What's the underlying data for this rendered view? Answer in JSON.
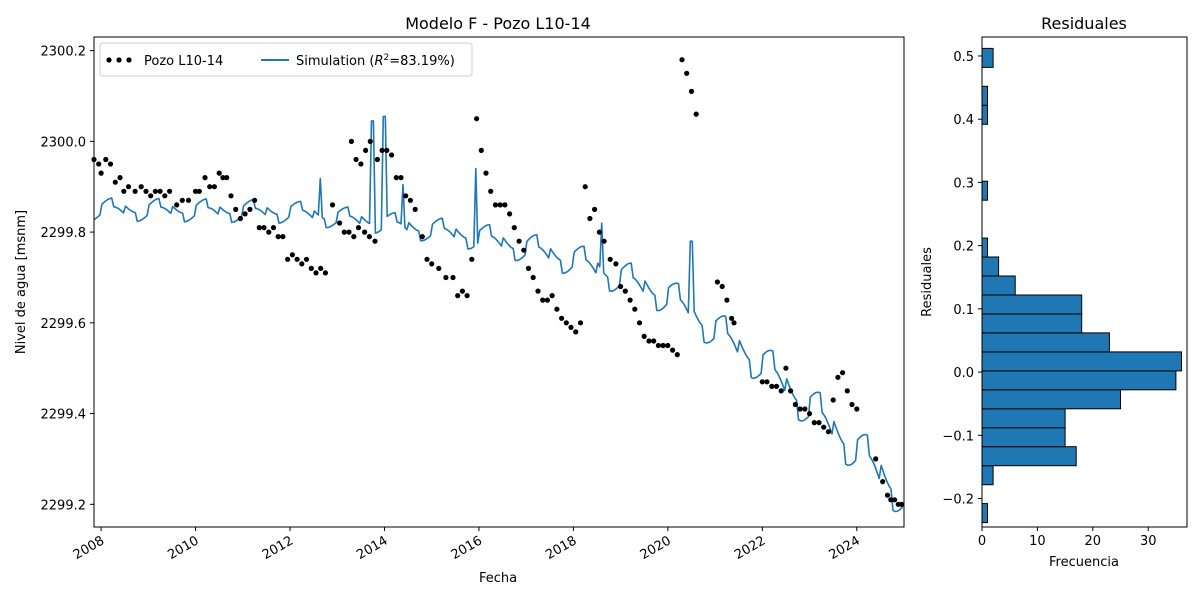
{
  "chart_data": [
    {
      "type": "line",
      "title": "Modelo F - Pozo L10-14",
      "xlabel": "Fecha",
      "ylabel": "Nivel de agua [msnm]",
      "xlim": [
        2007.85,
        2025.0
      ],
      "ylim": [
        2299.15,
        2300.23
      ],
      "x_tick_labels": [
        "2008",
        "2010",
        "2012",
        "2014",
        "2016",
        "2018",
        "2020",
        "2022",
        "2024"
      ],
      "x_tick_values": [
        2008,
        2010,
        2012,
        2014,
        2016,
        2018,
        2020,
        2022,
        2024
      ],
      "y_tick_labels": [
        "2299.2",
        "2299.4",
        "2299.6",
        "2299.8",
        "2300.0",
        "2300.2"
      ],
      "y_tick_values": [
        2299.2,
        2299.4,
        2299.6,
        2299.8,
        2300.0,
        2300.2
      ],
      "legend": {
        "placement": "upper-left",
        "ncol": 2,
        "entries": [
          "Pozo L10-14",
          "Simulation ($R^2$=83.19%)"
        ]
      },
      "legend_text": {
        "observed": "Pozo L10-14",
        "sim_prefix": "Simulation (",
        "sim_R": "R",
        "sim_sup": "2",
        "sim_suffix": "=83.19%)"
      },
      "grid": false,
      "series": [
        {
          "name": "Pozo L10-14",
          "style": "scatter",
          "color": "#000000",
          "points": [
            [
              2007.85,
              2299.96
            ],
            [
              2007.95,
              2299.95
            ],
            [
              2008.0,
              2299.93
            ],
            [
              2008.1,
              2299.96
            ],
            [
              2008.2,
              2299.95
            ],
            [
              2008.3,
              2299.91
            ],
            [
              2008.4,
              2299.92
            ],
            [
              2008.48,
              2299.89
            ],
            [
              2008.58,
              2299.9
            ],
            [
              2008.72,
              2299.89
            ],
            [
              2008.85,
              2299.9
            ],
            [
              2008.95,
              2299.89
            ],
            [
              2009.05,
              2299.88
            ],
            [
              2009.15,
              2299.89
            ],
            [
              2009.25,
              2299.89
            ],
            [
              2009.35,
              2299.88
            ],
            [
              2009.45,
              2299.89
            ],
            [
              2009.6,
              2299.86
            ],
            [
              2009.72,
              2299.87
            ],
            [
              2009.85,
              2299.87
            ],
            [
              2010.0,
              2299.89
            ],
            [
              2010.08,
              2299.89
            ],
            [
              2010.2,
              2299.92
            ],
            [
              2010.3,
              2299.9
            ],
            [
              2010.4,
              2299.9
            ],
            [
              2010.5,
              2299.93
            ],
            [
              2010.58,
              2299.92
            ],
            [
              2010.66,
              2299.92
            ],
            [
              2010.75,
              2299.88
            ],
            [
              2010.85,
              2299.85
            ],
            [
              2010.95,
              2299.83
            ],
            [
              2011.05,
              2299.84
            ],
            [
              2011.15,
              2299.85
            ],
            [
              2011.25,
              2299.87
            ],
            [
              2011.35,
              2299.81
            ],
            [
              2011.45,
              2299.81
            ],
            [
              2011.55,
              2299.8
            ],
            [
              2011.65,
              2299.81
            ],
            [
              2011.75,
              2299.79
            ],
            [
              2011.85,
              2299.79
            ],
            [
              2011.95,
              2299.74
            ],
            [
              2012.05,
              2299.75
            ],
            [
              2012.15,
              2299.74
            ],
            [
              2012.25,
              2299.73
            ],
            [
              2012.35,
              2299.74
            ],
            [
              2012.45,
              2299.72
            ],
            [
              2012.55,
              2299.71
            ],
            [
              2012.65,
              2299.72
            ],
            [
              2012.75,
              2299.71
            ],
            [
              2012.9,
              2299.86
            ],
            [
              2013.05,
              2299.82
            ],
            [
              2013.15,
              2299.8
            ],
            [
              2013.25,
              2299.8
            ],
            [
              2013.35,
              2299.79
            ],
            [
              2013.45,
              2299.81
            ],
            [
              2013.58,
              2299.8
            ],
            [
              2013.68,
              2299.79
            ],
            [
              2013.8,
              2299.78
            ],
            [
              2013.3,
              2300.0
            ],
            [
              2013.4,
              2299.96
            ],
            [
              2013.5,
              2299.95
            ],
            [
              2013.6,
              2299.98
            ],
            [
              2013.7,
              2300.0
            ],
            [
              2013.85,
              2299.96
            ],
            [
              2013.95,
              2299.98
            ],
            [
              2014.05,
              2299.98
            ],
            [
              2014.15,
              2299.97
            ],
            [
              2014.25,
              2299.92
            ],
            [
              2014.35,
              2299.92
            ],
            [
              2014.45,
              2299.88
            ],
            [
              2014.55,
              2299.87
            ],
            [
              2014.65,
              2299.85
            ],
            [
              2014.8,
              2299.79
            ],
            [
              2014.9,
              2299.74
            ],
            [
              2015.0,
              2299.73
            ],
            [
              2015.15,
              2299.72
            ],
            [
              2015.3,
              2299.7
            ],
            [
              2015.45,
              2299.7
            ],
            [
              2015.55,
              2299.66
            ],
            [
              2015.65,
              2299.67
            ],
            [
              2015.75,
              2299.66
            ],
            [
              2015.85,
              2299.74
            ],
            [
              2015.95,
              2300.05
            ],
            [
              2016.05,
              2299.98
            ],
            [
              2016.15,
              2299.93
            ],
            [
              2016.25,
              2299.89
            ],
            [
              2016.35,
              2299.86
            ],
            [
              2016.45,
              2299.86
            ],
            [
              2016.55,
              2299.86
            ],
            [
              2016.65,
              2299.84
            ],
            [
              2016.75,
              2299.81
            ],
            [
              2016.85,
              2299.78
            ],
            [
              2016.95,
              2299.76
            ],
            [
              2017.05,
              2299.72
            ],
            [
              2017.15,
              2299.7
            ],
            [
              2017.25,
              2299.67
            ],
            [
              2017.35,
              2299.65
            ],
            [
              2017.45,
              2299.65
            ],
            [
              2017.55,
              2299.66
            ],
            [
              2017.65,
              2299.63
            ],
            [
              2017.75,
              2299.61
            ],
            [
              2017.85,
              2299.6
            ],
            [
              2017.95,
              2299.59
            ],
            [
              2018.05,
              2299.58
            ],
            [
              2018.15,
              2299.6
            ],
            [
              2018.25,
              2299.9
            ],
            [
              2018.35,
              2299.83
            ],
            [
              2018.45,
              2299.85
            ],
            [
              2018.55,
              2299.8
            ],
            [
              2018.65,
              2299.78
            ],
            [
              2018.78,
              2299.74
            ],
            [
              2018.9,
              2299.73
            ],
            [
              2019.0,
              2299.68
            ],
            [
              2019.1,
              2299.67
            ],
            [
              2019.2,
              2299.65
            ],
            [
              2019.3,
              2299.63
            ],
            [
              2019.4,
              2299.6
            ],
            [
              2019.5,
              2299.57
            ],
            [
              2019.6,
              2299.56
            ],
            [
              2019.7,
              2299.56
            ],
            [
              2019.8,
              2299.55
            ],
            [
              2019.9,
              2299.55
            ],
            [
              2020.0,
              2299.55
            ],
            [
              2020.1,
              2299.54
            ],
            [
              2020.2,
              2299.53
            ],
            [
              2020.3,
              2300.18
            ],
            [
              2020.4,
              2300.15
            ],
            [
              2020.5,
              2300.11
            ],
            [
              2020.6,
              2300.06
            ],
            [
              2021.05,
              2299.69
            ],
            [
              2021.15,
              2299.68
            ],
            [
              2021.25,
              2299.65
            ],
            [
              2021.35,
              2299.61
            ],
            [
              2021.4,
              2299.6
            ],
            [
              2022.0,
              2299.47
            ],
            [
              2022.1,
              2299.47
            ],
            [
              2022.2,
              2299.46
            ],
            [
              2022.3,
              2299.46
            ],
            [
              2022.4,
              2299.45
            ],
            [
              2022.5,
              2299.5
            ],
            [
              2022.6,
              2299.45
            ],
            [
              2022.7,
              2299.42
            ],
            [
              2022.8,
              2299.41
            ],
            [
              2022.9,
              2299.41
            ],
            [
              2023.0,
              2299.4
            ],
            [
              2023.1,
              2299.38
            ],
            [
              2023.2,
              2299.38
            ],
            [
              2023.3,
              2299.37
            ],
            [
              2023.4,
              2299.36
            ],
            [
              2023.5,
              2299.43
            ],
            [
              2023.6,
              2299.48
            ],
            [
              2023.7,
              2299.49
            ],
            [
              2023.8,
              2299.45
            ],
            [
              2023.9,
              2299.42
            ],
            [
              2024.0,
              2299.41
            ],
            [
              2024.4,
              2299.3
            ],
            [
              2024.55,
              2299.25
            ],
            [
              2024.65,
              2299.22
            ],
            [
              2024.72,
              2299.21
            ],
            [
              2024.8,
              2299.21
            ],
            [
              2024.88,
              2299.2
            ],
            [
              2024.95,
              2299.2
            ]
          ]
        },
        {
          "name": "Simulation ($R^2$=83.19%)",
          "style": "line",
          "color": "#1f77b4",
          "trend_knots": [
            [
              2007.85,
              2299.85
            ],
            [
              2010.0,
              2299.848
            ],
            [
              2012.0,
              2299.845
            ],
            [
              2014.0,
              2299.82
            ],
            [
              2016.0,
              2299.79
            ],
            [
              2018.0,
              2299.74
            ],
            [
              2020.0,
              2299.66
            ],
            [
              2022.0,
              2299.51
            ],
            [
              2024.0,
              2299.32
            ],
            [
              2025.0,
              2299.22
            ]
          ],
          "spikes": [
            [
              2012.65,
              2299.918
            ],
            [
              2013.75,
              2300.045
            ],
            [
              2014.0,
              2300.055
            ],
            [
              2014.38,
              2299.905
            ],
            [
              2015.95,
              2299.94
            ],
            [
              2018.6,
              2299.82
            ],
            [
              2020.5,
              2299.78
            ]
          ]
        }
      ]
    },
    {
      "type": "bar",
      "orientation": "horizontal",
      "title": "Residuales",
      "xlabel": "Frecuencia",
      "ylabel": "Residuales",
      "xlim": [
        0,
        37
      ],
      "ylim": [
        -0.245,
        0.53
      ],
      "x_tick_labels": [
        "0",
        "10",
        "20",
        "30"
      ],
      "x_tick_values": [
        0,
        10,
        20,
        30
      ],
      "y_tick_labels": [
        "−0.2",
        "−0.1",
        "0.0",
        "0.1",
        "0.2",
        "0.3",
        "0.4",
        "0.5"
      ],
      "y_tick_values": [
        -0.2,
        -0.1,
        0.0,
        0.1,
        0.2,
        0.3,
        0.4,
        0.5
      ],
      "color": "#1f77b4",
      "edgecolor": "#000000",
      "bins": [
        {
          "from": -0.238,
          "to": -0.208,
          "count": 1
        },
        {
          "from": -0.178,
          "to": -0.148,
          "count": 2
        },
        {
          "from": -0.148,
          "to": -0.118,
          "count": 17
        },
        {
          "from": -0.118,
          "to": -0.088,
          "count": 15
        },
        {
          "from": -0.088,
          "to": -0.058,
          "count": 15
        },
        {
          "from": -0.058,
          "to": -0.028,
          "count": 25
        },
        {
          "from": -0.028,
          "to": 0.002,
          "count": 35
        },
        {
          "from": 0.002,
          "to": 0.032,
          "count": 36
        },
        {
          "from": 0.032,
          "to": 0.062,
          "count": 23
        },
        {
          "from": 0.062,
          "to": 0.092,
          "count": 18
        },
        {
          "from": 0.092,
          "to": 0.122,
          "count": 18
        },
        {
          "from": 0.122,
          "to": 0.152,
          "count": 6
        },
        {
          "from": 0.152,
          "to": 0.182,
          "count": 3
        },
        {
          "from": 0.182,
          "to": 0.212,
          "count": 1
        },
        {
          "from": 0.272,
          "to": 0.302,
          "count": 1
        },
        {
          "from": 0.392,
          "to": 0.422,
          "count": 1
        },
        {
          "from": 0.422,
          "to": 0.452,
          "count": 1
        },
        {
          "from": 0.482,
          "to": 0.512,
          "count": 2
        }
      ]
    }
  ]
}
